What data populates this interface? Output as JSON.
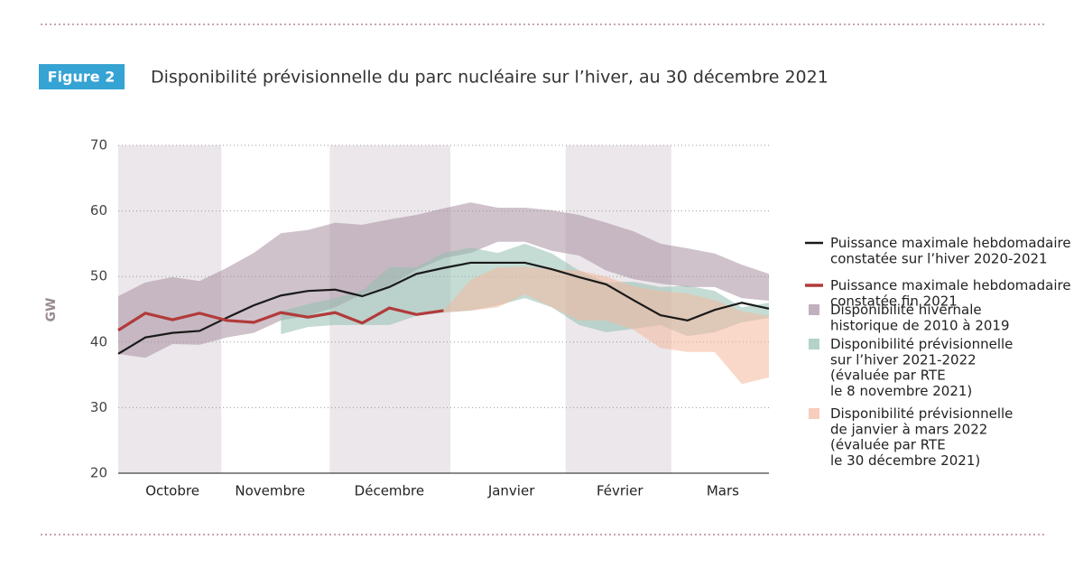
{
  "figure_label": "Figure 2",
  "chart_data": {
    "type": "line",
    "title": "Disponibilité prévisionnelle du parc nucléaire sur l’hiver, au 30 décembre 2021",
    "y_label": "GW",
    "x": [
      0,
      1,
      2,
      3,
      4,
      5,
      6,
      7,
      8,
      9,
      10,
      11,
      12,
      13,
      14,
      15,
      16,
      17,
      18,
      19,
      20,
      21,
      22,
      23,
      24
    ],
    "xlim": [
      0,
      24
    ],
    "xticks": [
      {
        "value": 2.0,
        "label": "Octobre"
      },
      {
        "value": 5.6,
        "label": "Novembre"
      },
      {
        "value": 10.0,
        "label": "Décembre"
      },
      {
        "value": 14.5,
        "label": "Janvier"
      },
      {
        "value": 18.5,
        "label": "Février"
      },
      {
        "value": 22.3,
        "label": "Mars"
      }
    ],
    "ylim": [
      20,
      70
    ],
    "yticks": [
      20,
      30,
      40,
      50,
      60,
      70
    ],
    "grid": true,
    "series": [
      {
        "name": "Puissance maximale hebdomadaire\nconstatée sur l’hiver 2020-2021",
        "kind": "line",
        "color": "#1a1a1a",
        "values": [
          38.2,
          40.7,
          41.4,
          41.7,
          43.7,
          45.6,
          47.1,
          47.8,
          48.0,
          47.0,
          48.4,
          50.4,
          51.3,
          52.1,
          52.1,
          52.1,
          51.1,
          49.9,
          48.8,
          46.4,
          44.1,
          43.3,
          44.9,
          46.0,
          45.1
        ]
      },
      {
        "name": "Puissance maximale hebdomadaire\nconstatée fin 2021",
        "kind": "line",
        "color": "#b23a3a",
        "values": [
          41.8,
          44.4,
          43.4,
          44.4,
          43.3,
          43.0,
          44.5,
          43.8,
          44.5,
          42.9,
          45.2,
          44.2,
          44.8,
          null,
          null,
          null,
          null,
          null,
          null,
          null,
          null,
          null,
          null,
          null,
          null
        ]
      },
      {
        "name": "Disponibilité hivernale\nhistorique de 2010 à 2019",
        "kind": "band",
        "color": "#a78fa1",
        "low": [
          38.2,
          37.6,
          39.7,
          39.6,
          40.7,
          41.4,
          43.3,
          44.0,
          45.3,
          47.3,
          48.6,
          51.0,
          52.8,
          53.6,
          55.3,
          55.3,
          53.9,
          53.2,
          50.9,
          49.6,
          48.9,
          48.4,
          48.4,
          46.7,
          46.3
        ],
        "high": [
          47.0,
          49.1,
          49.9,
          49.3,
          51.3,
          53.6,
          56.6,
          57.1,
          58.2,
          57.9,
          58.7,
          59.4,
          60.4,
          61.3,
          60.5,
          60.5,
          60.1,
          59.4,
          58.2,
          56.9,
          55.0,
          54.3,
          53.5,
          51.8,
          50.4
        ]
      },
      {
        "name": "Disponibilité prévisionnelle\nsur l’hiver 2021-2022\n(évaluée par RTE\nle 8 novembre 2021)",
        "kind": "band",
        "color": "#93bfb1",
        "low": [
          null,
          null,
          null,
          null,
          null,
          null,
          41.2,
          42.3,
          42.6,
          42.6,
          42.6,
          44.0,
          44.5,
          44.8,
          45.6,
          46.7,
          45.3,
          42.6,
          41.5,
          42.0,
          42.6,
          40.9,
          41.5,
          43.0,
          43.7
        ],
        "high": [
          null,
          null,
          null,
          null,
          null,
          null,
          44.7,
          45.8,
          46.7,
          47.8,
          51.4,
          51.4,
          53.6,
          54.4,
          53.6,
          55.0,
          53.5,
          50.9,
          49.1,
          49.2,
          48.4,
          48.6,
          47.8,
          45.3,
          46.0
        ]
      },
      {
        "name": "Disponibilité prévisionnelle\nde janvier à mars 2022\n(évaluée par RTE\nle 30 décembre 2021)",
        "kind": "band",
        "color": "#f4b89e",
        "low": [
          null,
          null,
          null,
          null,
          null,
          null,
          null,
          null,
          null,
          null,
          null,
          null,
          44.5,
          44.8,
          45.3,
          47.3,
          45.3,
          43.3,
          43.3,
          41.9,
          39.1,
          38.5,
          38.5,
          33.6,
          34.6
        ],
        "high": [
          null,
          null,
          null,
          null,
          null,
          null,
          null,
          null,
          null,
          null,
          null,
          null,
          44.8,
          49.5,
          51.4,
          51.5,
          51.1,
          50.9,
          50.0,
          48.5,
          47.8,
          47.4,
          46.4,
          44.7,
          44.0
        ]
      }
    ]
  }
}
